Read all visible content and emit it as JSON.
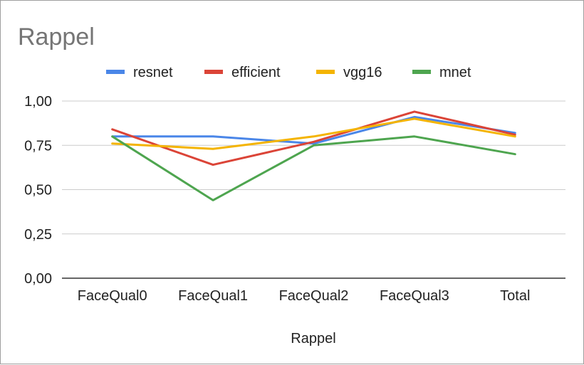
{
  "chart_data": {
    "type": "line",
    "title": "Rappel",
    "xlabel": "Rappel",
    "ylabel": "",
    "categories": [
      "FaceQual0",
      "FaceQual1",
      "FaceQual2",
      "FaceQual3",
      "Total"
    ],
    "ylim": [
      0,
      1
    ],
    "yticks": [
      0,
      0.25,
      0.5,
      0.75,
      1
    ],
    "ytick_labels": [
      "0,00",
      "0,25",
      "0,50",
      "0,75",
      "1,00"
    ],
    "grid": true,
    "legend_position": "top",
    "series": [
      {
        "name": "resnet",
        "color": "#4a86e8",
        "values": [
          0.8,
          0.8,
          0.76,
          0.91,
          0.82
        ]
      },
      {
        "name": "efficient",
        "color": "#db4437",
        "values": [
          0.84,
          0.64,
          0.77,
          0.94,
          0.81
        ]
      },
      {
        "name": "vgg16",
        "color": "#f4b400",
        "values": [
          0.76,
          0.73,
          0.8,
          0.9,
          0.8
        ]
      },
      {
        "name": "mnet",
        "color": "#4ea54f",
        "values": [
          0.8,
          0.44,
          0.75,
          0.8,
          0.7
        ]
      }
    ]
  }
}
